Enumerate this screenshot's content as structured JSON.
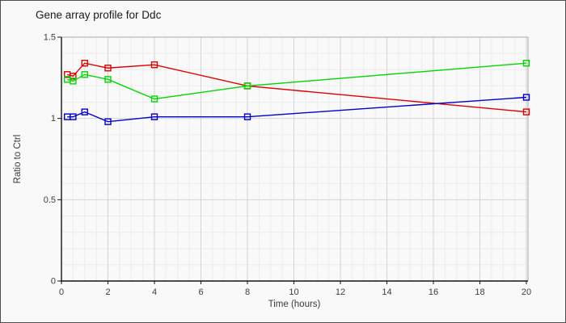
{
  "title": "Gene array profile for Ddc",
  "chart_data": {
    "type": "line",
    "title": "Gene array profile for Ddc",
    "xlabel": "Time (hours)",
    "ylabel": "Ratio to Ctrl",
    "x": [
      0.25,
      0.5,
      1,
      2,
      4,
      8,
      20
    ],
    "series": [
      {
        "name": "red",
        "color": "#dd0000",
        "values": [
          1.27,
          1.26,
          1.34,
          1.31,
          1.33,
          1.2,
          1.04
        ]
      },
      {
        "name": "green",
        "color": "#00d500",
        "values": [
          1.24,
          1.23,
          1.27,
          1.24,
          1.12,
          1.2,
          1.34
        ]
      },
      {
        "name": "blue",
        "color": "#0000cc",
        "values": [
          1.01,
          1.01,
          1.04,
          0.98,
          1.01,
          1.01,
          1.13
        ]
      }
    ],
    "xlim": [
      0,
      20
    ],
    "ylim": [
      0,
      1.5
    ],
    "x_ticks": [
      0,
      2,
      4,
      6,
      8,
      10,
      12,
      14,
      16,
      18,
      20
    ],
    "x_tick_labels": [
      "0",
      "2",
      "4",
      "6",
      "8",
      "10",
      "12",
      "14",
      "16",
      "18",
      "20"
    ],
    "y_ticks": [
      0,
      0.5,
      1,
      1.5
    ],
    "y_tick_labels": [
      "0",
      "0.5",
      "1",
      "1.5"
    ],
    "x_minor_step": 0.5,
    "y_minor_step": 0.1,
    "grid": true,
    "legend": "none",
    "marker": "square-open"
  },
  "colors": {
    "background": "#f9f9f9",
    "frame_border": "#4e4e4e",
    "axis": "#141414",
    "grid_major": "#d4d4d4",
    "grid_minor": "#ececec",
    "plot_border": "#a9a9a9",
    "tick_text": "#3d3d3d",
    "title_text": "#1a1a1a"
  }
}
